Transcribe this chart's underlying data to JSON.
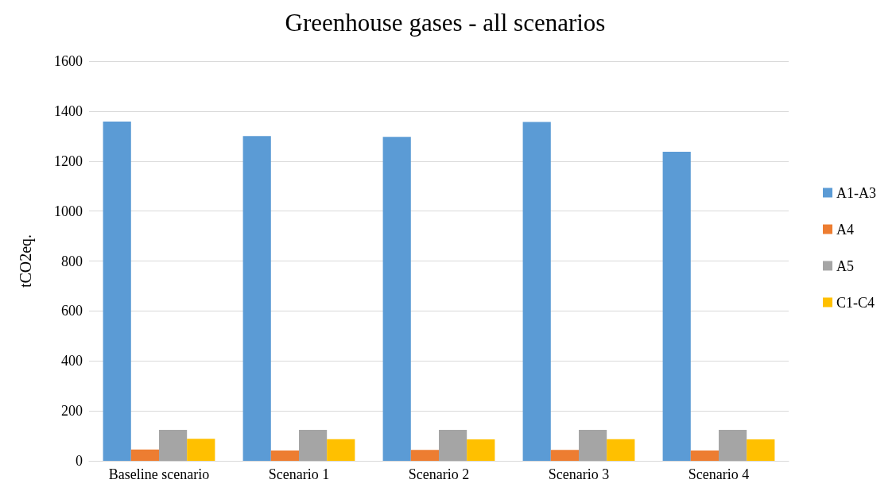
{
  "chart_data": {
    "type": "bar",
    "title": "Greenhouse gases - all scenarios",
    "ylabel": "tCO2eq.",
    "categories": [
      "Baseline scenario",
      "Scenario 1",
      "Scenario 2",
      "Scenario 3",
      "Scenario 4"
    ],
    "series": [
      {
        "name": "A1-A3",
        "color": "#5b9bd5",
        "values": [
          1358,
          1300,
          1297,
          1357,
          1237
        ]
      },
      {
        "name": "A4",
        "color": "#ed7d31",
        "values": [
          45,
          41,
          44,
          44,
          41
        ]
      },
      {
        "name": "A5",
        "color": "#a5a5a5",
        "values": [
          124,
          124,
          124,
          124,
          124
        ]
      },
      {
        "name": "C1-C4",
        "color": "#ffc000",
        "values": [
          88,
          87,
          86,
          87,
          86
        ]
      }
    ],
    "ylim": [
      0,
      1600
    ],
    "yticks": [
      0,
      200,
      400,
      600,
      800,
      1000,
      1200,
      1400,
      1600
    ],
    "grid": "y",
    "legend": "right"
  }
}
